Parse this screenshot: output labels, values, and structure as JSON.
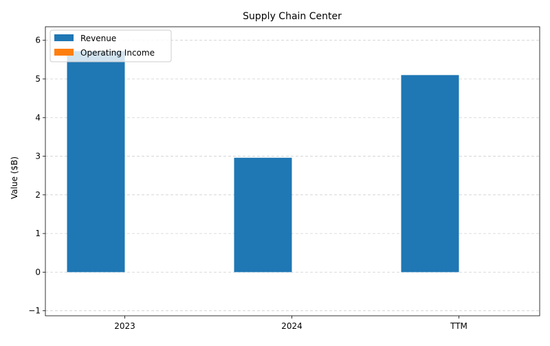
{
  "chart_data": {
    "type": "bar",
    "title": "Supply Chain Center",
    "xlabel": "",
    "ylabel": "Value ($B)",
    "categories": [
      "2023",
      "2024",
      "TTM"
    ],
    "series": [
      {
        "name": "Revenue",
        "color": "#1f77b4",
        "values": [
          5.72,
          2.96,
          5.1
        ]
      },
      {
        "name": "Operating Income",
        "color": "#ff7f0e",
        "values": [
          0,
          0,
          0
        ]
      }
    ],
    "ylim": [
      -1.13,
      6.35
    ],
    "yticks": [
      -1,
      0,
      1,
      2,
      3,
      4,
      5,
      6
    ],
    "grid": true,
    "legend_position": "top-left"
  }
}
